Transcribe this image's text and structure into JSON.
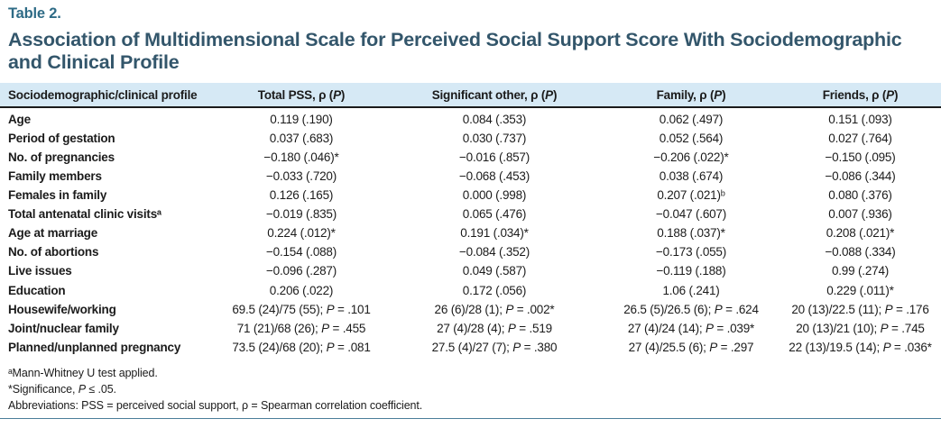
{
  "colors": {
    "caption": "#2e6b86",
    "title": "#33566b",
    "header_bg": "#d6e9f5",
    "rule": "#4b7e99",
    "ink": "#1b1b1b"
  },
  "caption": "Table 2.",
  "title": "Association of Multidimensional Scale for Perceived Social Support Score With Sociodemographic and Clinical Profile",
  "table": {
    "columns": [
      "Sociodemographic/clinical profile",
      "Total PSS, ρ (P)",
      "Significant other, ρ (P)",
      "Family, ρ (P)",
      "Friends, ρ (P)"
    ],
    "rows": [
      {
        "label": "Age",
        "values": [
          "0.119 (.190)",
          "0.084 (.353)",
          "0.062 (.497)",
          "0.151 (.093)"
        ]
      },
      {
        "label": "Period of gestation",
        "values": [
          "0.037 (.683)",
          "0.030 (.737)",
          "0.052 (.564)",
          "0.027 (.764)"
        ]
      },
      {
        "label": "No. of pregnancies",
        "values": [
          "−0.180 (.046)*",
          "−0.016 (.857)",
          "−0.206 (.022)*",
          "−0.150 (.095)"
        ]
      },
      {
        "label": "Family members",
        "values": [
          "−0.033 (.720)",
          "−0.068 (.453)",
          "0.038 (.674)",
          "−0.086 (.344)"
        ]
      },
      {
        "label": "Females in family",
        "values": [
          "0.126 (.165)",
          "0.000 (.998)",
          "0.207 (.021)ᵇ",
          "0.080 (.376)"
        ]
      },
      {
        "label": "Total antenatal clinic visitsᵃ",
        "values": [
          "−0.019 (.835)",
          "0.065 (.476)",
          "−0.047 (.607)",
          "0.007 (.936)"
        ]
      },
      {
        "label": "Age at marriage",
        "values": [
          "0.224 (.012)*",
          "0.191 (.034)*",
          "0.188 (.037)*",
          "0.208 (.021)*"
        ]
      },
      {
        "label": "No. of abortions",
        "values": [
          "−0.154 (.088)",
          "−0.084 (.352)",
          "−0.173 (.055)",
          "−0.088 (.334)"
        ]
      },
      {
        "label": "Live issues",
        "values": [
          "−0.096 (.287)",
          "0.049 (.587)",
          "−0.119 (.188)",
          "0.99 (.274)"
        ]
      },
      {
        "label": "Education",
        "values": [
          "0.206 (.022)",
          "0.172 (.056)",
          "1.06 (.241)",
          "0.229 (.011)*"
        ]
      },
      {
        "label": "Housewife/working",
        "values": [
          "69.5 (24)/75 (55); P = .101",
          "26 (6)/28 (1); P = .002*",
          "26.5 (5)/26.5 (6); P = .624",
          "20 (13)/22.5 (11); P = .176"
        ]
      },
      {
        "label": "Joint/nuclear family",
        "values": [
          "71 (21)/68 (26); P = .455",
          "27 (4)/28 (4); P = .519",
          "27 (4)/24 (14); P = .039*",
          "20 (13)/21 (10); P = .745"
        ]
      },
      {
        "label": "Planned/unplanned pregnancy",
        "values": [
          "73.5 (24)/68 (20); P = .081",
          "27.5 (4)/27 (7); P = .380",
          "27 (4)/25.5 (6); P = .297",
          "22 (13)/19.5 (14); P = .036*"
        ]
      }
    ]
  },
  "footnotes": [
    "ᵃMann-Whitney U test applied.",
    "*Significance, P ≤ .05.",
    "Abbreviations: PSS = perceived social support, ρ = Spearman correlation coefficient."
  ]
}
